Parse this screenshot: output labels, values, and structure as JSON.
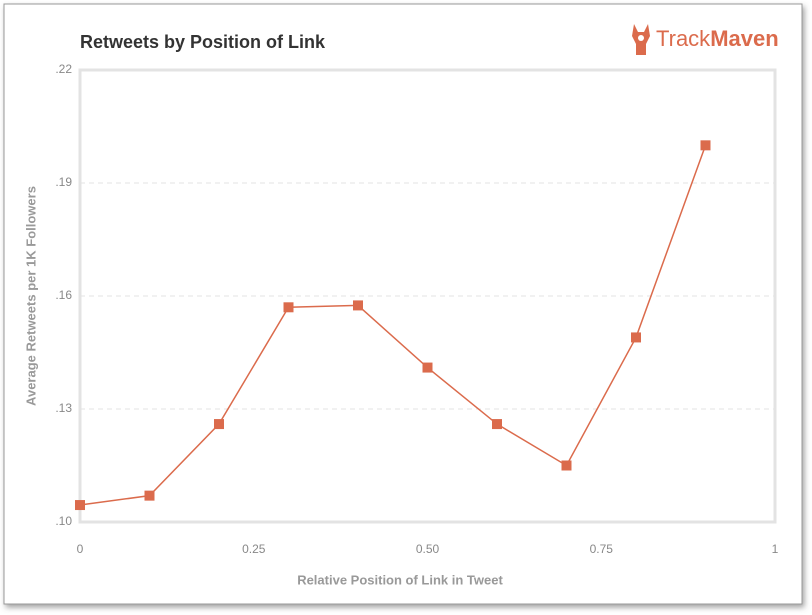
{
  "logo": {
    "parts": [
      "Track",
      "Maven"
    ]
  },
  "chart_data": {
    "type": "line",
    "title": "Retweets by Position of Link",
    "x_label": "Relative Position of Link in Tweet",
    "y_label": "Average Retweets per 1K Followers",
    "x": [
      0,
      0.1,
      0.2,
      0.3,
      0.4,
      0.5,
      0.6,
      0.7,
      0.8,
      0.9
    ],
    "series": [
      {
        "color": "#db6b4c",
        "values": [
          0.1045,
          0.107,
          0.126,
          0.157,
          0.1575,
          0.141,
          0.126,
          0.115,
          0.149,
          0.2
        ]
      }
    ],
    "xlim": [
      0,
      1
    ],
    "xticks": [
      0,
      0.25,
      {
        "value": 0.5,
        "label": "0.50"
      },
      0.75,
      1
    ],
    "ylim": [
      0.1,
      0.22
    ],
    "yticks": [
      {
        "value": 0.1,
        "label": ".10"
      },
      {
        "value": 0.13,
        "label": ".13"
      },
      {
        "value": 0.16,
        "label": ".16"
      },
      {
        "value": 0.19,
        "label": ".19"
      },
      {
        "value": 0.22,
        "label": ".22"
      }
    ],
    "grid": "y"
  }
}
